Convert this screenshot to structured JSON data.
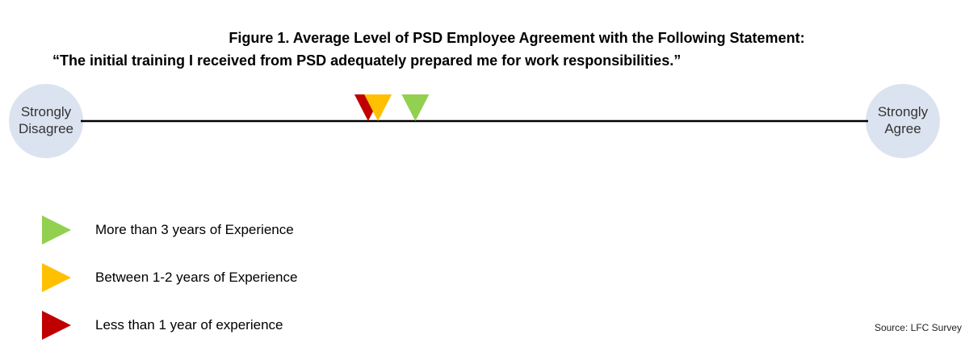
{
  "chart_data": {
    "type": "scale",
    "title": "Figure 1. Average Level of PSD Employee Agreement with the Following Statement:",
    "subtitle": "“The initial training I received from PSD adequately prepared me for work responsibilities.”",
    "source": "Source: LFC Survey",
    "xlim": [
      1,
      5
    ],
    "xticks": [
      {
        "value": 1,
        "label": "Strongly Disagree"
      },
      {
        "value": 5,
        "label": "Strongly Agree"
      }
    ],
    "series": [
      {
        "name": "More than 3 years of Experience",
        "color": "#92d050",
        "values": [
          2.7
        ]
      },
      {
        "name": "Between 1-2 years of Experience",
        "color": "#ffc000",
        "values": [
          2.51
        ]
      },
      {
        "name": "Less than 1 year of experience",
        "color": "#c00000",
        "values": [
          2.46
        ]
      }
    ]
  }
}
